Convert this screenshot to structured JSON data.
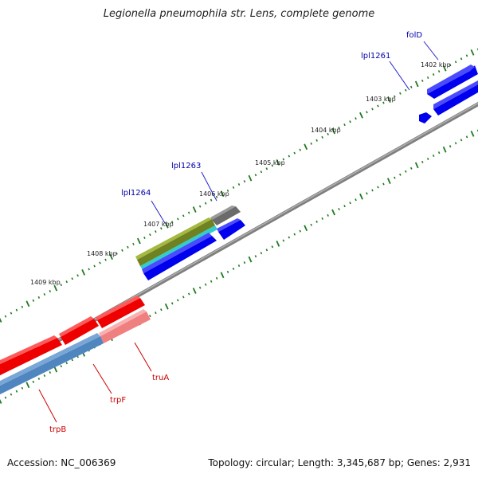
{
  "title": "Legionella pneumophila str. Lens, complete genome",
  "accession": "Accession: NC_006369",
  "summary": "Topology: circular; Length: 3,345,687 bp; Genes: 2,931",
  "colors": {
    "backbone": "#8c8c8c",
    "tick": "#1e7a1e",
    "forward_gene": "#0000ee",
    "reverse_gene": "#ee0000",
    "forward_label": "#0000aa",
    "reverse_label": "#cc0000",
    "olive": "#7a8c22",
    "cyan": "#33cccc",
    "gray_feature": "#777777",
    "pink": "#f08080",
    "steelblue": "#4f86c0"
  },
  "scale_labels": [
    "1402 kbp",
    "1403 kbp",
    "1404 kbp",
    "1405 kbp",
    "1406 kbp",
    "1407 kbp",
    "1408 kbp",
    "1409 kbp"
  ],
  "forward_gene_labels": [
    "folD",
    "lpl1261",
    "lpl1263",
    "lpl1264"
  ],
  "reverse_gene_labels": [
    "truA",
    "trpF",
    "trpB"
  ]
}
